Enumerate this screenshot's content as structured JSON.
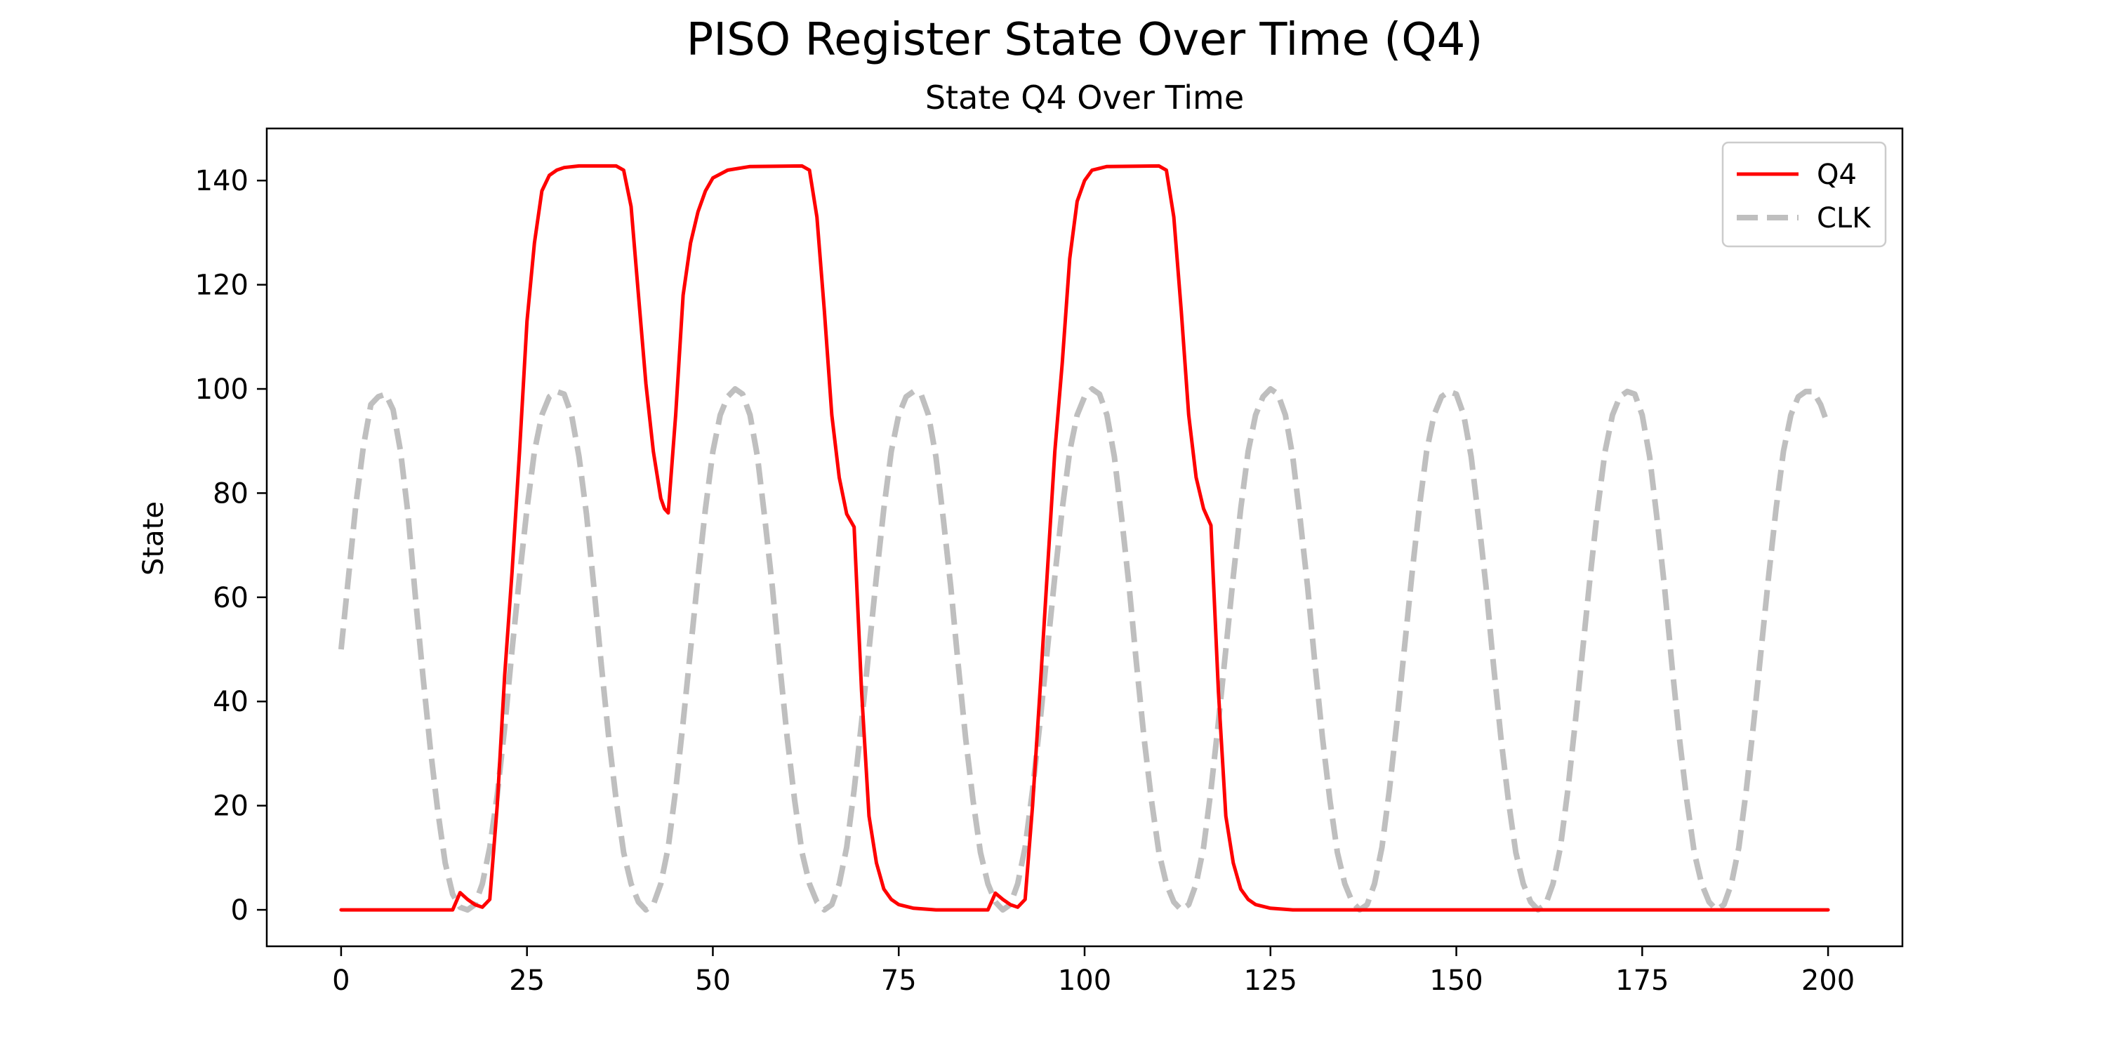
{
  "chart_data": {
    "type": "line",
    "title": "PISO Register State Over Time (Q4)",
    "subtitle": "State Q4 Over Time",
    "xlabel": "",
    "ylabel": "State",
    "xlim": [
      -10,
      210
    ],
    "ylim": [
      -7,
      150
    ],
    "xticks": [
      0,
      25,
      50,
      75,
      100,
      125,
      150,
      175,
      200
    ],
    "yticks": [
      0,
      20,
      40,
      60,
      80,
      100,
      120,
      140
    ],
    "grid": false,
    "legend_position": "top-right",
    "series": [
      {
        "name": "Q4",
        "color": "#ff0000",
        "style": "solid",
        "points": [
          [
            0,
            0
          ],
          [
            15,
            0
          ],
          [
            16,
            3.3
          ],
          [
            17,
            2
          ],
          [
            18,
            1
          ],
          [
            19,
            0.5
          ],
          [
            20,
            2
          ],
          [
            21,
            20
          ],
          [
            22,
            45
          ],
          [
            23,
            65
          ],
          [
            24,
            88
          ],
          [
            25,
            113
          ],
          [
            26,
            128
          ],
          [
            27,
            138
          ],
          [
            28,
            141
          ],
          [
            29,
            142
          ],
          [
            30,
            142.5
          ],
          [
            32,
            142.8
          ],
          [
            37,
            142.8
          ],
          [
            38,
            142
          ],
          [
            39,
            135
          ],
          [
            40,
            118
          ],
          [
            41,
            101
          ],
          [
            42,
            88
          ],
          [
            43,
            79
          ],
          [
            43.5,
            77
          ],
          [
            44,
            76.2
          ],
          [
            45,
            95
          ],
          [
            46,
            118
          ],
          [
            47,
            128
          ],
          [
            48,
            134
          ],
          [
            49,
            138
          ],
          [
            50,
            140.5
          ],
          [
            52,
            142
          ],
          [
            55,
            142.7
          ],
          [
            62,
            142.8
          ],
          [
            63,
            142
          ],
          [
            64,
            133
          ],
          [
            65,
            115
          ],
          [
            66,
            95
          ],
          [
            67,
            83
          ],
          [
            68,
            76
          ],
          [
            69,
            73.5
          ],
          [
            70,
            42
          ],
          [
            71,
            18
          ],
          [
            72,
            9
          ],
          [
            73,
            4
          ],
          [
            74,
            2
          ],
          [
            75,
            1
          ],
          [
            77,
            0.3
          ],
          [
            80,
            0
          ],
          [
            87,
            0
          ],
          [
            88,
            3.2
          ],
          [
            89,
            2
          ],
          [
            90,
            1
          ],
          [
            91,
            0.5
          ],
          [
            92,
            2
          ],
          [
            93,
            20
          ],
          [
            94,
            42
          ],
          [
            95,
            65
          ],
          [
            96,
            88
          ],
          [
            97,
            105
          ],
          [
            98,
            125
          ],
          [
            99,
            136
          ],
          [
            100,
            140
          ],
          [
            101,
            142
          ],
          [
            103,
            142.7
          ],
          [
            110,
            142.8
          ],
          [
            111,
            142
          ],
          [
            112,
            133
          ],
          [
            113,
            115
          ],
          [
            114,
            95
          ],
          [
            115,
            83
          ],
          [
            116,
            77
          ],
          [
            117,
            73.8
          ],
          [
            118,
            42
          ],
          [
            119,
            18
          ],
          [
            120,
            9
          ],
          [
            121,
            4
          ],
          [
            122,
            2
          ],
          [
            123,
            1
          ],
          [
            125,
            0.3
          ],
          [
            128,
            0
          ],
          [
            200,
            0
          ]
        ]
      },
      {
        "name": "CLK",
        "color": "#bfbfbf",
        "style": "dashed",
        "points": [
          [
            0,
            50
          ],
          [
            1,
            64
          ],
          [
            2,
            78
          ],
          [
            3,
            89
          ],
          [
            4,
            97
          ],
          [
            5,
            98.5
          ],
          [
            6,
            99
          ],
          [
            7,
            96
          ],
          [
            8,
            88
          ],
          [
            9,
            76
          ],
          [
            10,
            60
          ],
          [
            11,
            45
          ],
          [
            12,
            31
          ],
          [
            13,
            19
          ],
          [
            14,
            9
          ],
          [
            15,
            3
          ],
          [
            16,
            0.5
          ],
          [
            17,
            0
          ],
          [
            18,
            1
          ],
          [
            19,
            5
          ],
          [
            20,
            12
          ],
          [
            21,
            22
          ],
          [
            22,
            35
          ],
          [
            23,
            50
          ],
          [
            24,
            64
          ],
          [
            25,
            77
          ],
          [
            26,
            88
          ],
          [
            27,
            95
          ],
          [
            28,
            98.5
          ],
          [
            29,
            99.5
          ],
          [
            30,
            99
          ],
          [
            31,
            95
          ],
          [
            32,
            87
          ],
          [
            33,
            76
          ],
          [
            34,
            62
          ],
          [
            35,
            47
          ],
          [
            36,
            33
          ],
          [
            37,
            21
          ],
          [
            38,
            11
          ],
          [
            39,
            5
          ],
          [
            40,
            1.5
          ],
          [
            41,
            0
          ],
          [
            42,
            1
          ],
          [
            43,
            5
          ],
          [
            44,
            12
          ],
          [
            45,
            23
          ],
          [
            46,
            36
          ],
          [
            47,
            50
          ],
          [
            48,
            64
          ],
          [
            49,
            77
          ],
          [
            50,
            88
          ],
          [
            51,
            95
          ],
          [
            52,
            98.5
          ],
          [
            53,
            100
          ],
          [
            54,
            99
          ],
          [
            55,
            95
          ],
          [
            56,
            87
          ],
          [
            57,
            75
          ],
          [
            58,
            62
          ],
          [
            59,
            47
          ],
          [
            60,
            33
          ],
          [
            61,
            21
          ],
          [
            62,
            11
          ],
          [
            63,
            5
          ],
          [
            64,
            1.5
          ],
          [
            65,
            0
          ],
          [
            66,
            1
          ],
          [
            67,
            5
          ],
          [
            68,
            12
          ],
          [
            69,
            23
          ],
          [
            70,
            36
          ],
          [
            71,
            50
          ],
          [
            72,
            64
          ],
          [
            73,
            77
          ],
          [
            74,
            88
          ],
          [
            75,
            95
          ],
          [
            76,
            98.5
          ],
          [
            77,
            99.5
          ],
          [
            78,
            99
          ],
          [
            79,
            95
          ],
          [
            80,
            87
          ],
          [
            81,
            75
          ],
          [
            82,
            62
          ],
          [
            83,
            47
          ],
          [
            84,
            33
          ],
          [
            85,
            21
          ],
          [
            86,
            11
          ],
          [
            87,
            5
          ],
          [
            88,
            1.5
          ],
          [
            89,
            0
          ],
          [
            90,
            1
          ],
          [
            91,
            5
          ],
          [
            92,
            12
          ],
          [
            93,
            23
          ],
          [
            94,
            36
          ],
          [
            95,
            50
          ],
          [
            96,
            64
          ],
          [
            97,
            77
          ],
          [
            98,
            88
          ],
          [
            99,
            95
          ],
          [
            100,
            98.5
          ],
          [
            101,
            100
          ],
          [
            102,
            99
          ],
          [
            103,
            95
          ],
          [
            104,
            87
          ],
          [
            105,
            75
          ],
          [
            106,
            62
          ],
          [
            107,
            47
          ],
          [
            108,
            33
          ],
          [
            109,
            21
          ],
          [
            110,
            11
          ],
          [
            111,
            5
          ],
          [
            112,
            1.5
          ],
          [
            113,
            0
          ],
          [
            114,
            1
          ],
          [
            115,
            5
          ],
          [
            116,
            12
          ],
          [
            117,
            23
          ],
          [
            118,
            36
          ],
          [
            119,
            50
          ],
          [
            120,
            64
          ],
          [
            121,
            77
          ],
          [
            122,
            88
          ],
          [
            123,
            95
          ],
          [
            124,
            98.5
          ],
          [
            125,
            100
          ],
          [
            126,
            99
          ],
          [
            127,
            95
          ],
          [
            128,
            87
          ],
          [
            129,
            75
          ],
          [
            130,
            62
          ],
          [
            131,
            47
          ],
          [
            132,
            33
          ],
          [
            133,
            21
          ],
          [
            134,
            11
          ],
          [
            135,
            5
          ],
          [
            136,
            1.5
          ],
          [
            137,
            0
          ],
          [
            138,
            1
          ],
          [
            139,
            5
          ],
          [
            140,
            12
          ],
          [
            141,
            23
          ],
          [
            142,
            36
          ],
          [
            143,
            50
          ],
          [
            144,
            64
          ],
          [
            145,
            77
          ],
          [
            146,
            88
          ],
          [
            147,
            95
          ],
          [
            148,
            98.5
          ],
          [
            149,
            99.5
          ],
          [
            150,
            99
          ],
          [
            151,
            95
          ],
          [
            152,
            87
          ],
          [
            153,
            75
          ],
          [
            154,
            62
          ],
          [
            155,
            47
          ],
          [
            156,
            33
          ],
          [
            157,
            21
          ],
          [
            158,
            11
          ],
          [
            159,
            5
          ],
          [
            160,
            1.5
          ],
          [
            161,
            0
          ],
          [
            162,
            1
          ],
          [
            163,
            5
          ],
          [
            164,
            12
          ],
          [
            165,
            23
          ],
          [
            166,
            36
          ],
          [
            167,
            50
          ],
          [
            168,
            64
          ],
          [
            169,
            77
          ],
          [
            170,
            88
          ],
          [
            171,
            95
          ],
          [
            172,
            98.5
          ],
          [
            173,
            99.5
          ],
          [
            174,
            99
          ],
          [
            175,
            95
          ],
          [
            176,
            87
          ],
          [
            177,
            75
          ],
          [
            178,
            62
          ],
          [
            179,
            47
          ],
          [
            180,
            33
          ],
          [
            181,
            21
          ],
          [
            182,
            11
          ],
          [
            183,
            5
          ],
          [
            184,
            1.5
          ],
          [
            185,
            0
          ],
          [
            186,
            1
          ],
          [
            187,
            5
          ],
          [
            188,
            12
          ],
          [
            189,
            23
          ],
          [
            190,
            36
          ],
          [
            191,
            50
          ],
          [
            192,
            64
          ],
          [
            193,
            77
          ],
          [
            194,
            88
          ],
          [
            195,
            95
          ],
          [
            196,
            98.5
          ],
          [
            197,
            99.5
          ],
          [
            198,
            99.5
          ],
          [
            199,
            97
          ],
          [
            200,
            93
          ]
        ]
      }
    ]
  }
}
